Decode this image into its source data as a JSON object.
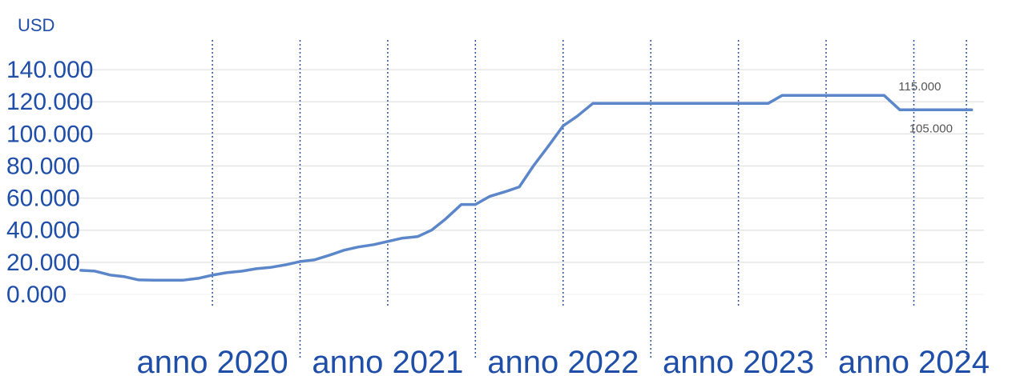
{
  "chart_data": {
    "type": "line",
    "y_unit": "USD",
    "yticks": [
      "140.000",
      "120.000",
      "100.000",
      "80.000",
      "60.000",
      "40.000",
      "20.000",
      "0.000"
    ],
    "ytick_values": [
      140000,
      120000,
      100000,
      80000,
      60000,
      40000,
      20000,
      0
    ],
    "xticks": [
      "anno 2020",
      "anno 2021",
      "anno 2022",
      "anno 2023",
      "anno 2024"
    ],
    "ylim": [
      0,
      155000
    ],
    "xlim": [
      2019.2,
      2024.4
    ],
    "grid": true,
    "colors": {
      "line": "#5b86c9",
      "text": "#1f4ea8",
      "grid": "#e6e6e6",
      "year_marker": "#2b4f9e"
    },
    "series": [
      {
        "x": [
          2019.25,
          2019.33,
          2019.42,
          2019.5,
          2019.58,
          2019.67,
          2019.75,
          2019.83,
          2019.92,
          2020.0,
          2020.08,
          2020.17,
          2020.25,
          2020.33,
          2020.42,
          2020.5,
          2020.58,
          2020.67,
          2020.75,
          2020.83,
          2020.92,
          2021.0,
          2021.08,
          2021.17,
          2021.25,
          2021.33,
          2021.42,
          2021.5,
          2021.58,
          2021.67,
          2021.75,
          2021.83,
          2021.92,
          2022.0,
          2022.08,
          2022.17,
          2022.25,
          2022.33,
          2022.42,
          2022.5,
          2022.58,
          2022.67,
          2022.75,
          2022.83,
          2022.92,
          2023.0,
          2023.08,
          2023.17,
          2023.25,
          2023.33,
          2023.42,
          2023.5,
          2023.58,
          2023.67,
          2023.75,
          2023.83,
          2023.92,
          2024.0,
          2024.08,
          2024.17,
          2024.25,
          2024.33
        ],
        "y": [
          15000,
          14500,
          12000,
          11000,
          9000,
          8800,
          8800,
          8800,
          10000,
          12000,
          13500,
          14500,
          16000,
          16800,
          18500,
          20500,
          21500,
          24500,
          27500,
          29500,
          31000,
          33000,
          35000,
          36000,
          40000,
          47000,
          56000,
          56000,
          61000,
          64000,
          67000,
          80000,
          93000,
          105000,
          111000,
          119000,
          119000,
          119000,
          119000,
          119000,
          119000,
          119000,
          119000,
          119000,
          119000,
          119000,
          119000,
          119000,
          124000,
          124000,
          124000,
          124000,
          124000,
          124000,
          124000,
          124000,
          115000,
          115000,
          115000,
          115000,
          115000,
          115000
        ]
      }
    ],
    "annotations": [
      "115.000",
      "105.000"
    ]
  }
}
